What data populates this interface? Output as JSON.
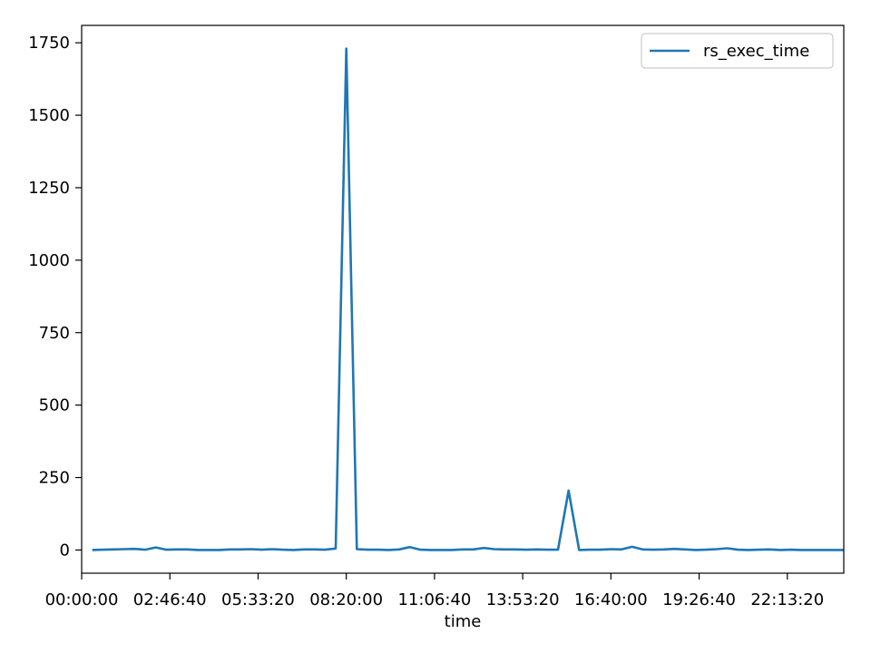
{
  "chart_data": {
    "type": "line",
    "title": "",
    "xlabel": "time",
    "ylabel": "",
    "xlim": [
      "00:00:00",
      "23:59:59"
    ],
    "ylim": [
      -80,
      1810
    ],
    "grid": false,
    "legend_position": "top-right",
    "x_ticks": [
      "00:00:00",
      "02:46:40",
      "05:33:20",
      "08:20:00",
      "11:06:40",
      "13:53:20",
      "16:40:00",
      "19:26:40",
      "22:13:20"
    ],
    "y_ticks": [
      "0",
      "250",
      "500",
      "750",
      "1000",
      "1250",
      "1500",
      "1750"
    ],
    "series": [
      {
        "name": "rs_exec_time",
        "color": "#1f77b4",
        "x": [
          "00:20:00",
          "00:40:00",
          "01:00:00",
          "01:20:00",
          "01:40:00",
          "02:00:00",
          "02:20:00",
          "02:40:00",
          "03:00:00",
          "03:20:00",
          "03:40:00",
          "04:00:00",
          "04:20:00",
          "04:40:00",
          "05:00:00",
          "05:20:00",
          "05:40:00",
          "06:00:00",
          "06:20:00",
          "06:40:00",
          "07:00:00",
          "07:20:00",
          "07:40:00",
          "08:00:00",
          "08:20:00",
          "08:40:00",
          "09:00:00",
          "09:20:00",
          "09:40:00",
          "10:00:00",
          "10:20:00",
          "10:40:00",
          "11:00:00",
          "11:20:00",
          "11:40:00",
          "12:00:00",
          "12:20:00",
          "12:40:00",
          "13:00:00",
          "13:20:00",
          "13:40:00",
          "14:00:00",
          "14:20:00",
          "14:40:00",
          "15:00:00",
          "15:20:00",
          "15:40:00",
          "16:00:00",
          "16:20:00",
          "16:40:00",
          "17:00:00",
          "17:20:00",
          "17:40:00",
          "18:00:00",
          "18:20:00",
          "18:40:00",
          "19:00:00",
          "19:20:00",
          "19:40:00",
          "20:00:00",
          "20:20:00",
          "20:40:00",
          "21:00:00",
          "21:20:00",
          "21:40:00",
          "22:00:00",
          "22:20:00",
          "22:40:00",
          "23:00:00",
          "23:20:00",
          "23:40:00",
          "24:00:00"
        ],
        "values": [
          0,
          1,
          2,
          3,
          4,
          1,
          9,
          1,
          2,
          2,
          0,
          0,
          0,
          2,
          2,
          3,
          1,
          3,
          1,
          0,
          2,
          2,
          1,
          5,
          1730,
          3,
          1,
          1,
          0,
          2,
          10,
          1,
          0,
          0,
          0,
          2,
          2,
          7,
          3,
          2,
          2,
          1,
          2,
          1,
          1,
          205,
          0,
          1,
          1,
          3,
          2,
          11,
          2,
          1,
          2,
          4,
          2,
          0,
          1,
          3,
          6,
          1,
          0,
          1,
          2,
          0,
          1,
          0,
          0,
          0,
          0,
          0
        ]
      }
    ]
  }
}
